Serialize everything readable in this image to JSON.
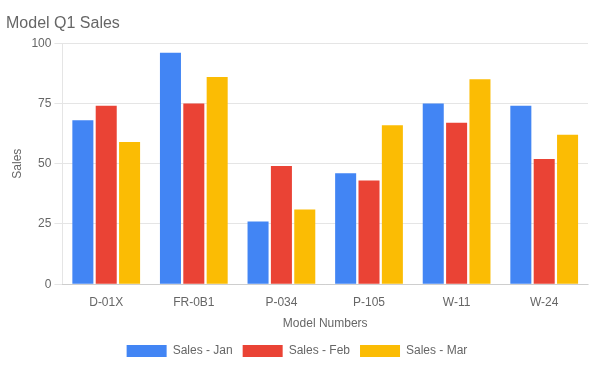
{
  "chart_data": {
    "type": "bar",
    "title": "Model Q1 Sales",
    "xlabel": "Model Numbers",
    "ylabel": "Sales",
    "categories": [
      "D-01X",
      "FR-0B1",
      "P-034",
      "P-105",
      "W-11",
      "W-24"
    ],
    "series": [
      {
        "name": "Sales - Jan",
        "color": "#4285F4",
        "values": [
          68,
          96,
          26,
          46,
          75,
          74
        ]
      },
      {
        "name": "Sales - Feb",
        "color": "#EA4335",
        "values": [
          74,
          75,
          49,
          43,
          67,
          52
        ]
      },
      {
        "name": "Sales - Mar",
        "color": "#FBBC04",
        "values": [
          59,
          86,
          31,
          66,
          85,
          62
        ]
      }
    ],
    "ylim": [
      0,
      100
    ],
    "yticks": [
      0,
      25,
      50,
      75,
      100
    ],
    "grid": true,
    "legend": "bottom"
  }
}
